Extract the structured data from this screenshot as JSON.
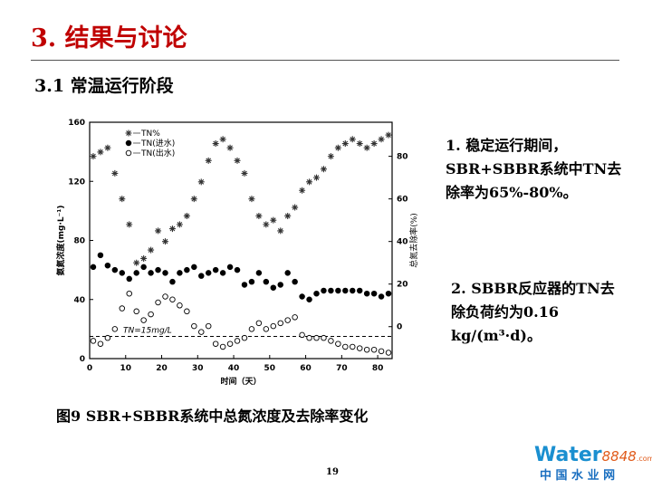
{
  "slide": {
    "title": "3. 结果与讨论",
    "subtitle": "3.1 常温运行阶段",
    "note1": "1. 稳定运行期间，SBR+SBBR系统中TN去除率为65%-80%。",
    "note2": "2. SBBR反应器的TN去除负荷约为0.16 kg/(m³·d)。",
    "caption": "图9 SBR+SBBR系统中总氮浓度及去除率变化",
    "page": "19",
    "logo": {
      "brand": "Water",
      "number": "8848",
      "domain": ".com",
      "tagline": "中 国 水 业 网"
    }
  },
  "chart_data": {
    "type": "scatter",
    "xlabel": "时间（天）",
    "ylabel": "氨氮浓度(mg·L⁻¹)",
    "y2label": "总氮去除率(%)",
    "annotation": "TN=15mg/L",
    "threshold": 15,
    "x": [
      1,
      3,
      5,
      7,
      9,
      11,
      13,
      15,
      17,
      19,
      21,
      23,
      25,
      27,
      29,
      31,
      33,
      35,
      37,
      39,
      41,
      43,
      45,
      47,
      49,
      51,
      53,
      55,
      57,
      59,
      61,
      63,
      65,
      67,
      69,
      71,
      73,
      75,
      77,
      79,
      81,
      83
    ],
    "xlim": [
      0,
      84
    ],
    "xticks": [
      0,
      10,
      20,
      30,
      40,
      50,
      60,
      70,
      80
    ],
    "ylim": [
      0,
      160
    ],
    "yticks": [
      0,
      40,
      80,
      120,
      160
    ],
    "y2lim": [
      -15,
      96
    ],
    "y2ticks": [
      0,
      20,
      40,
      60,
      80
    ],
    "series": [
      {
        "name": "TN%",
        "color": "#333333",
        "marker": "star",
        "axis": "y2",
        "values": [
          80,
          82,
          84,
          72,
          60,
          48,
          30,
          32,
          36,
          45,
          40,
          46,
          48,
          52,
          60,
          68,
          78,
          86,
          88,
          84,
          78,
          72,
          60,
          52,
          48,
          50,
          45,
          52,
          56,
          64,
          68,
          70,
          74,
          80,
          84,
          86,
          88,
          86,
          84,
          86,
          88,
          90
        ]
      },
      {
        "name": "TN(进水)",
        "color": "#000000",
        "marker": "filled",
        "values": [
          62,
          70,
          63,
          60,
          58,
          54,
          58,
          62,
          58,
          60,
          58,
          52,
          58,
          60,
          62,
          56,
          58,
          60,
          58,
          62,
          60,
          50,
          52,
          58,
          52,
          48,
          50,
          58,
          52,
          42,
          40,
          44,
          46,
          46,
          46,
          46,
          46,
          46,
          44,
          44,
          42,
          44
        ]
      },
      {
        "name": "TN(出水)",
        "color": "#000000",
        "marker": "open",
        "values": [
          12,
          10,
          14,
          20,
          34,
          44,
          32,
          26,
          30,
          38,
          42,
          40,
          36,
          32,
          22,
          18,
          22,
          10,
          8,
          10,
          12,
          14,
          20,
          24,
          20,
          22,
          24,
          26,
          28,
          16,
          14,
          14,
          14,
          12,
          10,
          8,
          8,
          7,
          6,
          6,
          5,
          4
        ]
      }
    ]
  }
}
